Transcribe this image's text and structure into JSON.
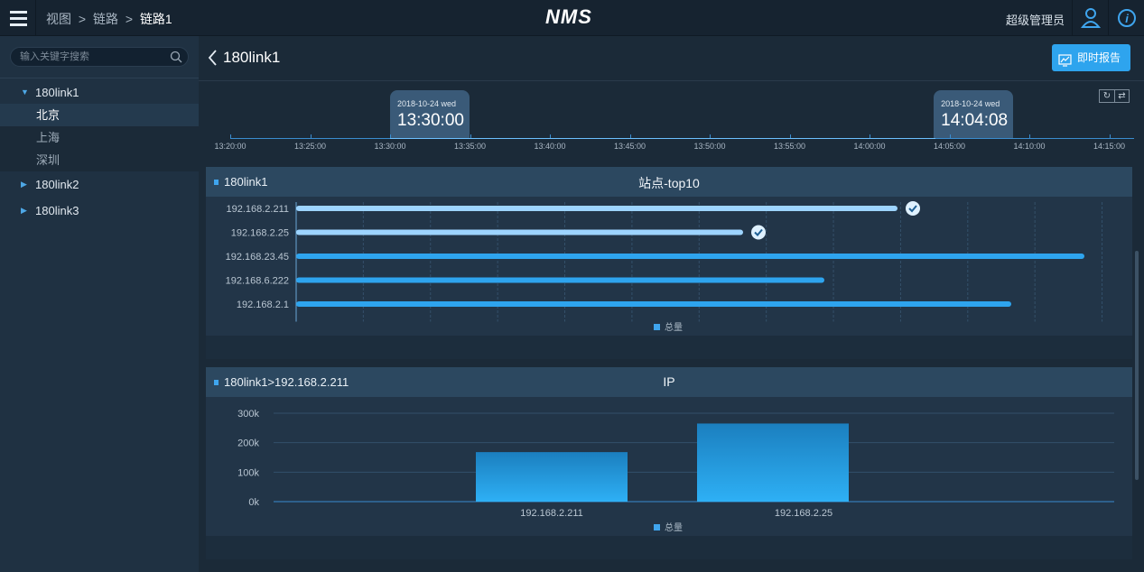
{
  "topbar": {
    "breadcrumb": [
      "视图",
      "链路",
      "链路1"
    ],
    "separator": ">",
    "app_title": "NMS",
    "user": "超级管理员"
  },
  "sidebar": {
    "search_placeholder": "输入关键字搜索",
    "tree": [
      {
        "label": "180link1",
        "expanded": true,
        "children": [
          {
            "label": "北京",
            "active": true
          },
          {
            "label": "上海",
            "active": false
          },
          {
            "label": "深圳",
            "active": false
          }
        ]
      },
      {
        "label": "180link2",
        "expanded": false
      },
      {
        "label": "180link3",
        "expanded": false
      }
    ]
  },
  "main": {
    "title": "180link1",
    "report_button": "即时报告",
    "timeline": {
      "ticks": [
        "13:20:00",
        "13:25:00",
        "13:30:00",
        "13:35:00",
        "13:40:00",
        "13:45:00",
        "13:50:00",
        "13:55:00",
        "14:00:00",
        "14:05:00",
        "14:10:00",
        "14:15:00"
      ],
      "start": {
        "date": "2018-10-24 wed",
        "time": "13:30:00"
      },
      "end": {
        "date": "2018-10-24 wed",
        "time": "14:04:08"
      }
    }
  },
  "panel1": {
    "link": "180link1",
    "title": "站点-top10",
    "legend": "总量"
  },
  "panel2": {
    "link": "180link1>192.168.2.211",
    "title": "IP",
    "legend": "总量"
  },
  "colors": {
    "accent": "#3fa5ee",
    "selected_bar": "#9dd4ff",
    "bar": "#2ea4ee"
  },
  "chart_data": [
    {
      "type": "bar",
      "orientation": "horizontal",
      "title": "站点-top10",
      "categories": [
        "192.168.2.211",
        "192.168.2.25",
        "192.168.23.45",
        "192.168.6.222",
        "192.168.2.1"
      ],
      "series": [
        {
          "name": "总量",
          "values": [
            74,
            55,
            97,
            65,
            88
          ]
        }
      ],
      "selected": [
        "192.168.2.211",
        "192.168.2.25"
      ],
      "grid": true
    },
    {
      "type": "bar",
      "title": "IP",
      "categories": [
        "192.168.2.211",
        "192.168.2.25"
      ],
      "series": [
        {
          "name": "总量",
          "values": [
            168000,
            265000
          ]
        }
      ],
      "yticks": [
        "0k",
        "100k",
        "200k",
        "300k"
      ],
      "ylim": [
        0,
        300000
      ],
      "grid": true
    }
  ]
}
